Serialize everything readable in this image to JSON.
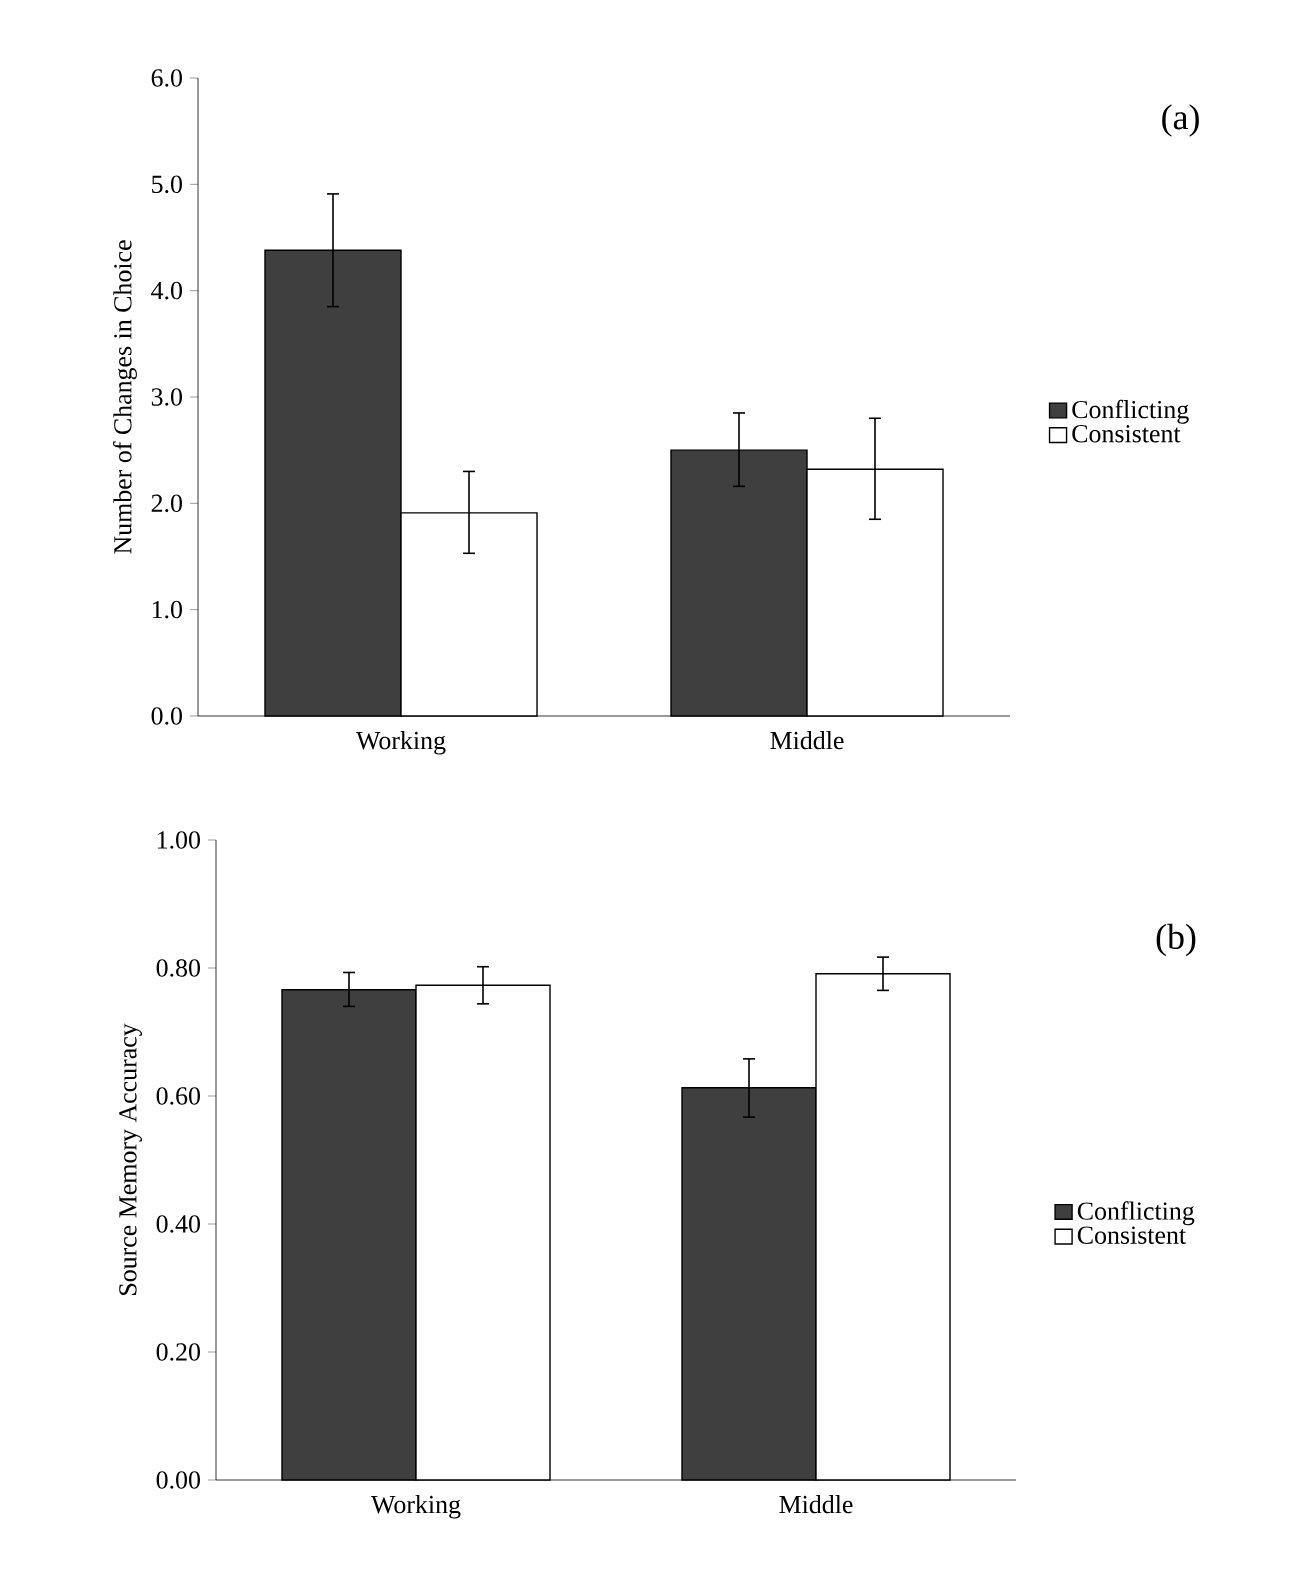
{
  "chart_data": [
    {
      "type": "bar",
      "ylabel": "Number of Changes in Choice",
      "annotations": [
        "(a)"
      ],
      "categories": [
        "Working",
        "Middle"
      ],
      "series": [
        {
          "name": "Conflicting",
          "color": "#3f3f3f",
          "values": [
            4.38,
            2.5
          ],
          "errors": [
            [
              3.85,
              4.91
            ],
            [
              2.16,
              2.85
            ]
          ]
        },
        {
          "name": "Consistent",
          "color": "#ffffff",
          "values": [
            1.91,
            2.32
          ],
          "errors": [
            [
              1.53,
              2.3
            ],
            [
              1.85,
              2.8
            ]
          ]
        }
      ],
      "ylim": [
        0,
        6
      ],
      "yticks": [
        {
          "value": 0,
          "label": "0.0"
        },
        {
          "value": 1,
          "label": "1.0"
        },
        {
          "value": 2,
          "label": "2.0"
        },
        {
          "value": 3,
          "label": "3.0"
        },
        {
          "value": 4,
          "label": "4.0"
        },
        {
          "value": 5,
          "label": "5.0"
        },
        {
          "value": 6,
          "label": "6.0"
        }
      ],
      "legend": "right"
    },
    {
      "type": "bar",
      "ylabel": "Source Memory Accuracy",
      "annotations": [
        "(b)"
      ],
      "categories": [
        "Working",
        "Middle"
      ],
      "series": [
        {
          "name": "Conflicting",
          "color": "#3f3f3f",
          "values": [
            0.766,
            0.613
          ],
          "errors": [
            [
              0.74,
              0.793
            ],
            [
              0.567,
              0.658
            ]
          ]
        },
        {
          "name": "Consistent",
          "color": "#ffffff",
          "values": [
            0.773,
            0.791
          ],
          "errors": [
            [
              0.744,
              0.802
            ],
            [
              0.765,
              0.817
            ]
          ]
        }
      ],
      "ylim": [
        0,
        1
      ],
      "yticks": [
        {
          "value": 0,
          "label": "0.00"
        },
        {
          "value": 0.2,
          "label": "0.20"
        },
        {
          "value": 0.4,
          "label": "0.40"
        },
        {
          "value": 0.6,
          "label": "0.60"
        },
        {
          "value": 0.8,
          "label": "0.80"
        },
        {
          "value": 1,
          "label": "1.00"
        }
      ],
      "legend": "right"
    }
  ]
}
